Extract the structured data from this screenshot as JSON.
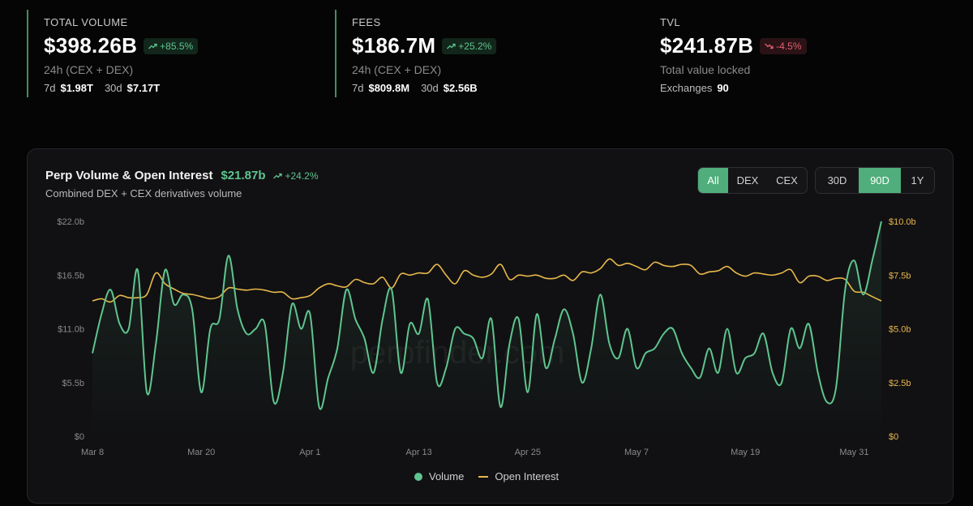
{
  "stats": [
    {
      "label": "TOTAL VOLUME",
      "value": "$398.26B",
      "change": "+85.5%",
      "direction": "up",
      "sub": "24h (CEX + DEX)",
      "line": [
        {
          "k": "7d",
          "v": "$1.98T"
        },
        {
          "k": "30d",
          "v": "$7.17T"
        }
      ]
    },
    {
      "label": "FEES",
      "value": "$186.7M",
      "change": "+25.2%",
      "direction": "up",
      "sub": "24h (CEX + DEX)",
      "line": [
        {
          "k": "7d",
          "v": "$809.8M"
        },
        {
          "k": "30d",
          "v": "$2.56B"
        }
      ]
    },
    {
      "label": "TVL",
      "value": "$241.87B",
      "change": "-4.5%",
      "direction": "down",
      "sub": "Total value locked",
      "line": [
        {
          "k": "Exchanges",
          "v": "90"
        }
      ]
    }
  ],
  "panel": {
    "title": "Perp Volume & Open Interest",
    "value": "$21.87b",
    "change": "+24.2%",
    "subtitle": "Combined DEX + CEX derivatives volume",
    "market_filters": [
      "All",
      "DEX",
      "CEX"
    ],
    "market_active": "All",
    "range_filters": [
      "30D",
      "90D",
      "1Y"
    ],
    "range_active": "90D",
    "watermark": "perpfinder.com"
  },
  "colors": {
    "volume": "#5fc58f",
    "open_interest": "#e8b84b",
    "accent": "#4fae7b",
    "negative": "#e0616f"
  },
  "chart_data": {
    "type": "line",
    "x_start": "Mar 8",
    "x_ticks": [
      "Mar 8",
      "Mar 20",
      "Apr 1",
      "Apr 13",
      "Apr 25",
      "May 7",
      "May 19",
      "May 31"
    ],
    "y_left_ticks": [
      "$0",
      "$5.5b",
      "$11.0b",
      "$16.5b",
      "$22.0b"
    ],
    "y_left_lim": [
      0,
      22
    ],
    "y_right_ticks": [
      "$0",
      "$2.5b",
      "$5.0b",
      "$7.5b",
      "$10.0b"
    ],
    "y_right_lim": [
      0,
      10
    ],
    "grid": false,
    "legend_position": "bottom",
    "series": [
      {
        "name": "Volume",
        "axis": "left",
        "unit": "b",
        "values": [
          8.5,
          12.5,
          15.0,
          11.5,
          11.0,
          17.0,
          4.5,
          9.5,
          17.0,
          13.5,
          14.5,
          13.0,
          4.5,
          11.0,
          12.0,
          18.5,
          13.0,
          10.5,
          11.0,
          11.5,
          3.5,
          6.5,
          13.5,
          11.0,
          12.5,
          3.0,
          6.0,
          9.0,
          15.0,
          12.0,
          10.0,
          6.5,
          12.0,
          15.0,
          6.5,
          11.5,
          10.5,
          14.0,
          5.5,
          7.0,
          11.0,
          10.5,
          10.0,
          8.0,
          12.0,
          3.0,
          9.5,
          12.0,
          4.5,
          12.5,
          7.0,
          10.0,
          13.0,
          10.5,
          5.5,
          9.0,
          14.5,
          9.5,
          8.0,
          11.0,
          7.0,
          8.5,
          9.0,
          10.5,
          11.0,
          8.5,
          7.0,
          6.0,
          9.0,
          6.5,
          11.0,
          6.5,
          8.0,
          8.5,
          10.5,
          6.5,
          5.5,
          11.0,
          9.0,
          11.5,
          6.5,
          3.5,
          5.0,
          15.0,
          18.0,
          14.5,
          18.0,
          22.0
        ]
      },
      {
        "name": "Open Interest",
        "axis": "right",
        "unit": "b",
        "values": [
          6.3,
          6.4,
          6.25,
          6.55,
          6.45,
          6.45,
          6.6,
          7.6,
          7.1,
          6.85,
          6.65,
          6.6,
          6.5,
          6.4,
          6.5,
          6.9,
          6.85,
          6.8,
          6.85,
          6.8,
          6.7,
          6.7,
          6.4,
          6.45,
          6.55,
          6.9,
          7.1,
          7.0,
          6.95,
          7.3,
          7.15,
          7.1,
          7.4,
          6.9,
          7.55,
          7.5,
          7.6,
          7.6,
          8.0,
          7.5,
          7.1,
          7.7,
          7.5,
          7.4,
          7.55,
          8.0,
          7.3,
          7.5,
          7.45,
          7.5,
          7.35,
          7.35,
          7.5,
          7.25,
          7.65,
          7.6,
          7.8,
          8.25,
          7.95,
          8.05,
          7.9,
          7.75,
          8.1,
          7.95,
          7.9,
          8.0,
          7.95,
          7.55,
          7.65,
          7.7,
          7.9,
          7.6,
          7.45,
          7.6,
          7.55,
          7.5,
          7.6,
          7.75,
          7.15,
          7.45,
          7.45,
          7.25,
          7.35,
          7.3,
          6.75,
          6.7,
          6.5,
          6.3
        ]
      }
    ]
  }
}
